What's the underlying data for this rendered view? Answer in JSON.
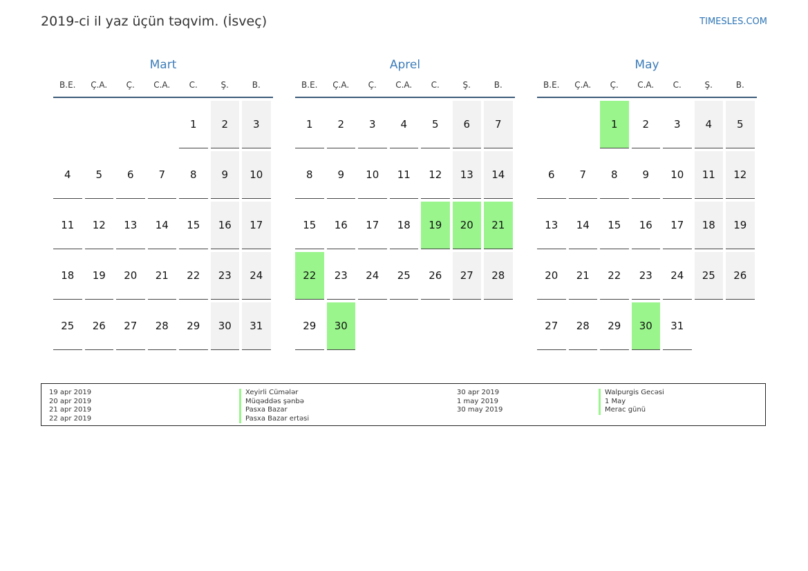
{
  "header": {
    "title": "2019-ci il yaz üçün təqvim. (İsveç)",
    "site": "TIMESLES.COM"
  },
  "weekday_labels": [
    "B.E.",
    "Ç.A.",
    "Ç.",
    "C.A.",
    "C.",
    "Ş.",
    "B."
  ],
  "colors": {
    "weekend": "#f2f2f2",
    "holiday": "#99f58c",
    "accent": "#3c7cb8"
  },
  "months": [
    {
      "name": "Mart",
      "offset": 4,
      "days": 31,
      "holidays": []
    },
    {
      "name": "Aprel",
      "offset": 0,
      "days": 30,
      "holidays": [
        19,
        20,
        21,
        22,
        30
      ]
    },
    {
      "name": "May",
      "offset": 2,
      "days": 31,
      "holidays": [
        1,
        30
      ]
    }
  ],
  "legend": {
    "left": [
      {
        "date": "19 apr 2019",
        "name": "Xeyirli Cümələr"
      },
      {
        "date": "20 apr 2019",
        "name": "Müqəddəs şənbə"
      },
      {
        "date": "21 apr 2019",
        "name": "Pasxa Bazar"
      },
      {
        "date": "22 apr 2019",
        "name": "Pasxa Bazar ertəsi"
      }
    ],
    "right": [
      {
        "date": "30 apr 2019",
        "name": "Walpurgis Gecəsi"
      },
      {
        "date": "1 may 2019",
        "name": "1 May"
      },
      {
        "date": "30 may 2019",
        "name": "Merac günü"
      }
    ]
  }
}
